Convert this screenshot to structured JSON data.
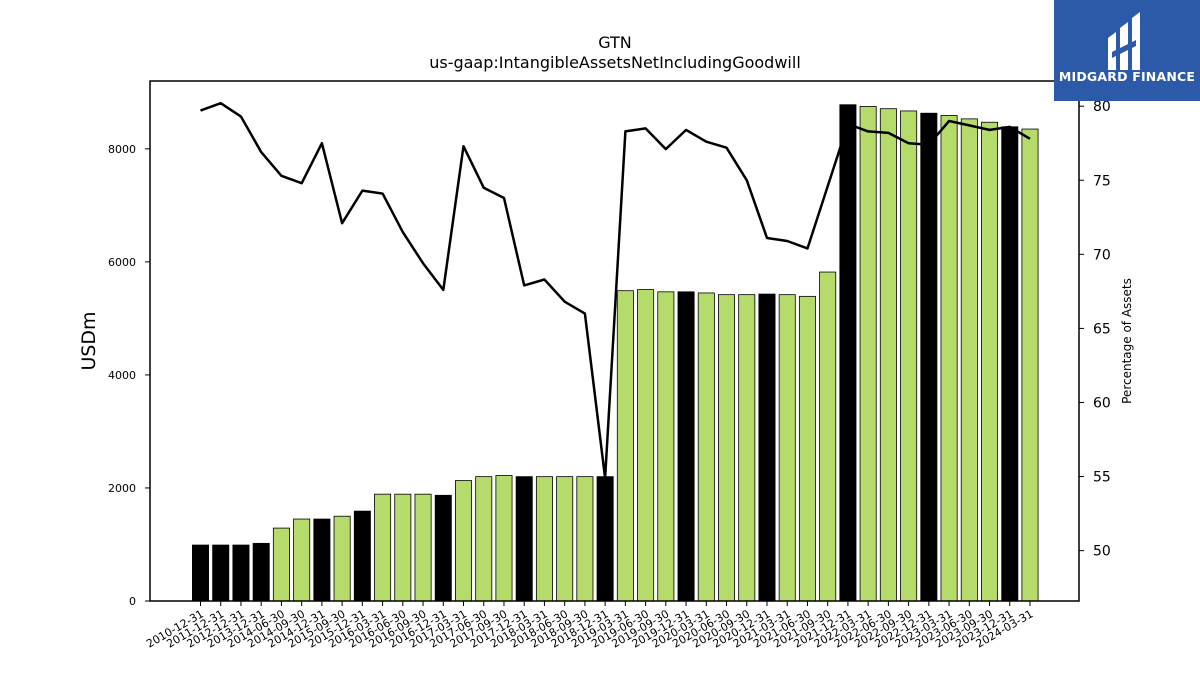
{
  "logo": {
    "text": "MIDGARD FINANCE"
  },
  "colors": {
    "bar_annual": "#000000",
    "bar_quarter": "#b5dc6a",
    "line": "#000000",
    "logo_bg": "#2d5aa8"
  },
  "chart_data": {
    "type": "bar",
    "title": "GTN",
    "subtitle": "us-gaap:IntangibleAssetsNetIncludingGoodwill",
    "ylabel": "USDm",
    "y2label": "Percentage of Assets",
    "ylim": [
      0,
      9200
    ],
    "y2lim": [
      46.6,
      81.7
    ],
    "yticks": [
      0,
      2000,
      4000,
      6000,
      8000
    ],
    "y2ticks": [
      50,
      55,
      60,
      65,
      70,
      75,
      80
    ],
    "grid": false,
    "categories": [
      "2010-12-31",
      "2011-12-31",
      "2012-12-31",
      "2013-12-31",
      "2014-06-30",
      "2014-09-30",
      "2014-12-31",
      "2015-09-30",
      "2015-12-31",
      "2016-03-31",
      "2016-06-30",
      "2016-09-30",
      "2016-12-31",
      "2017-03-31",
      "2017-06-30",
      "2017-09-30",
      "2017-12-31",
      "2018-03-31",
      "2018-06-30",
      "2018-09-30",
      "2018-12-31",
      "2019-03-31",
      "2019-06-30",
      "2019-09-30",
      "2019-12-31",
      "2020-03-31",
      "2020-06-30",
      "2020-09-30",
      "2020-12-31",
      "2021-03-31",
      "2021-06-30",
      "2021-09-30",
      "2021-12-31",
      "2022-03-31",
      "2022-06-30",
      "2022-09-30",
      "2022-12-31",
      "2023-03-31",
      "2023-06-30",
      "2023-09-30",
      "2023-12-31",
      "2024-03-31"
    ],
    "series": [
      {
        "type": "bar",
        "values": [
          990,
          990,
          990,
          1020,
          1290,
          1450,
          1450,
          1500,
          1590,
          1890,
          1890,
          1890,
          1870,
          2130,
          2200,
          2220,
          2200,
          2200,
          2200,
          2200,
          2200,
          5490,
          5510,
          5470,
          5470,
          5450,
          5420,
          5420,
          5430,
          5420,
          5390,
          5820,
          8780,
          8750,
          8710,
          8670,
          8630,
          8590,
          8530,
          8470,
          8390,
          8350
        ],
        "annual": [
          true,
          true,
          true,
          true,
          false,
          false,
          true,
          false,
          true,
          false,
          false,
          false,
          true,
          false,
          false,
          false,
          true,
          false,
          false,
          false,
          true,
          false,
          false,
          false,
          true,
          false,
          false,
          false,
          true,
          false,
          false,
          false,
          true,
          false,
          false,
          false,
          true,
          false,
          false,
          false,
          true,
          false
        ]
      },
      {
        "type": "line",
        "axis": "right",
        "values": [
          79.7,
          80.2,
          79.3,
          76.9,
          75.3,
          74.8,
          77.5,
          72.1,
          74.3,
          74.1,
          71.5,
          69.4,
          67.6,
          77.3,
          74.5,
          73.8,
          67.9,
          68.3,
          66.8,
          66.0,
          54.9,
          78.3,
          78.5,
          77.1,
          78.4,
          77.6,
          77.2,
          75.0,
          71.1,
          70.9,
          70.4,
          74.6,
          78.8,
          78.3,
          78.2,
          77.5,
          77.4,
          79.0,
          78.7,
          78.4,
          78.6,
          77.8
        ]
      }
    ]
  }
}
